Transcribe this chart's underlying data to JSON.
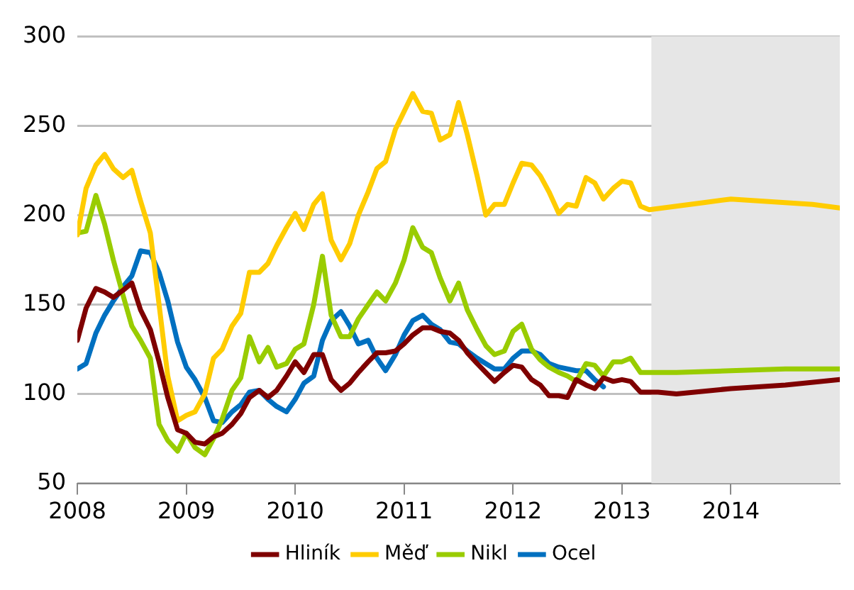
{
  "chart_data": {
    "type": "line",
    "xlim": [
      2008,
      2015
    ],
    "xticks": [
      2008,
      2009,
      2010,
      2011,
      2012,
      2013,
      2014
    ],
    "ylim": [
      50,
      300
    ],
    "yticks": [
      50,
      100,
      150,
      200,
      250,
      300
    ],
    "grid": "y",
    "legend": "bottom",
    "marker": "none",
    "line_style": "solid",
    "bands": [
      {
        "axis": "x",
        "from": 2013.27,
        "to": 2015,
        "color": "#e6e6e6"
      }
    ],
    "series": [
      {
        "name": "Hliník",
        "color": "#7f0000",
        "x": [
          2008.0,
          2008.08,
          2008.17,
          2008.25,
          2008.33,
          2008.42,
          2008.5,
          2008.58,
          2008.67,
          2008.75,
          2008.83,
          2008.92,
          2009.0,
          2009.08,
          2009.17,
          2009.25,
          2009.33,
          2009.42,
          2009.5,
          2009.58,
          2009.67,
          2009.75,
          2009.83,
          2009.92,
          2010.0,
          2010.08,
          2010.17,
          2010.25,
          2010.33,
          2010.42,
          2010.5,
          2010.58,
          2010.67,
          2010.75,
          2010.83,
          2010.92,
          2011.0,
          2011.08,
          2011.17,
          2011.25,
          2011.33,
          2011.42,
          2011.5,
          2011.58,
          2011.67,
          2011.75,
          2011.83,
          2011.92,
          2012.0,
          2012.08,
          2012.17,
          2012.25,
          2012.33,
          2012.42,
          2012.5,
          2012.58,
          2012.67,
          2012.75,
          2012.83,
          2012.92,
          2013.0,
          2013.08,
          2013.17,
          2013.33,
          2013.5,
          2014.0,
          2014.5,
          2015.0
        ],
        "values": [
          130,
          148,
          159,
          157,
          154,
          158,
          162,
          147,
          136,
          118,
          98,
          80,
          78,
          73,
          72,
          76,
          78,
          83,
          89,
          98,
          102,
          98,
          102,
          110,
          118,
          112,
          122,
          122,
          108,
          102,
          106,
          112,
          118,
          123,
          123,
          124,
          128,
          133,
          137,
          137,
          135,
          134,
          130,
          123,
          117,
          112,
          107,
          112,
          116,
          115,
          108,
          105,
          99,
          99,
          98,
          108,
          105,
          103,
          109,
          107,
          108,
          107,
          101,
          101,
          100,
          103,
          105,
          108
        ]
      },
      {
        "name": "Měď",
        "color": "#ffcc00",
        "x": [
          2008.0,
          2008.08,
          2008.17,
          2008.25,
          2008.33,
          2008.42,
          2008.5,
          2008.58,
          2008.67,
          2008.75,
          2008.83,
          2008.92,
          2009.0,
          2009.08,
          2009.17,
          2009.25,
          2009.33,
          2009.42,
          2009.5,
          2009.58,
          2009.67,
          2009.75,
          2009.83,
          2009.92,
          2010.0,
          2010.08,
          2010.17,
          2010.25,
          2010.33,
          2010.42,
          2010.5,
          2010.58,
          2010.67,
          2010.75,
          2010.83,
          2010.92,
          2011.0,
          2011.08,
          2011.17,
          2011.25,
          2011.33,
          2011.42,
          2011.5,
          2011.58,
          2011.67,
          2011.75,
          2011.83,
          2011.92,
          2012.0,
          2012.08,
          2012.17,
          2012.25,
          2012.33,
          2012.42,
          2012.5,
          2012.58,
          2012.67,
          2012.75,
          2012.83,
          2012.92,
          2013.0,
          2013.08,
          2013.17,
          2013.25,
          2013.5,
          2013.75,
          2014.0,
          2014.25,
          2014.5,
          2014.75,
          2015.0
        ],
        "values": [
          189,
          215,
          228,
          234,
          226,
          221,
          225,
          208,
          190,
          150,
          110,
          85,
          88,
          90,
          100,
          120,
          125,
          138,
          145,
          168,
          168,
          173,
          183,
          193,
          201,
          192,
          206,
          212,
          186,
          175,
          184,
          200,
          213,
          226,
          230,
          248,
          258,
          268,
          258,
          257,
          242,
          245,
          263,
          245,
          222,
          200,
          206,
          206,
          218,
          229,
          228,
          222,
          213,
          201,
          206,
          205,
          221,
          218,
          209,
          215,
          219,
          218,
          205,
          203,
          205,
          207,
          209,
          208,
          207,
          206,
          204
        ]
      },
      {
        "name": "Nikl",
        "color": "#99cc00",
        "x": [
          2008.0,
          2008.08,
          2008.17,
          2008.25,
          2008.33,
          2008.42,
          2008.5,
          2008.58,
          2008.67,
          2008.75,
          2008.83,
          2008.92,
          2009.0,
          2009.08,
          2009.17,
          2009.25,
          2009.33,
          2009.42,
          2009.5,
          2009.58,
          2009.67,
          2009.75,
          2009.83,
          2009.92,
          2010.0,
          2010.08,
          2010.17,
          2010.25,
          2010.33,
          2010.42,
          2010.5,
          2010.58,
          2010.67,
          2010.75,
          2010.83,
          2010.92,
          2011.0,
          2011.08,
          2011.17,
          2011.25,
          2011.33,
          2011.42,
          2011.5,
          2011.58,
          2011.67,
          2011.75,
          2011.83,
          2011.92,
          2012.0,
          2012.08,
          2012.17,
          2012.25,
          2012.33,
          2012.42,
          2012.5,
          2012.58,
          2012.67,
          2012.75,
          2012.83,
          2012.92,
          2013.0,
          2013.08,
          2013.17,
          2013.5,
          2014.0,
          2014.5,
          2015.0
        ],
        "values": [
          190,
          191,
          211,
          195,
          175,
          155,
          138,
          130,
          120,
          83,
          74,
          68,
          78,
          70,
          66,
          75,
          86,
          102,
          109,
          132,
          118,
          126,
          115,
          117,
          125,
          128,
          150,
          177,
          144,
          132,
          132,
          142,
          150,
          157,
          152,
          162,
          175,
          193,
          182,
          179,
          165,
          152,
          162,
          147,
          136,
          127,
          122,
          124,
          135,
          139,
          125,
          119,
          115,
          112,
          110,
          107,
          117,
          116,
          110,
          118,
          118,
          120,
          112,
          112,
          113,
          114,
          114
        ]
      },
      {
        "name": "Ocel",
        "color": "#0070c0",
        "x": [
          2008.0,
          2008.08,
          2008.17,
          2008.25,
          2008.33,
          2008.42,
          2008.5,
          2008.58,
          2008.67,
          2008.75,
          2008.83,
          2008.92,
          2009.0,
          2009.08,
          2009.17,
          2009.25,
          2009.33,
          2009.42,
          2009.5,
          2009.58,
          2009.67,
          2009.75,
          2009.83,
          2009.92,
          2010.0,
          2010.08,
          2010.17,
          2010.25,
          2010.33,
          2010.42,
          2010.5,
          2010.58,
          2010.67,
          2010.75,
          2010.83,
          2010.92,
          2011.0,
          2011.08,
          2011.17,
          2011.25,
          2011.33,
          2011.42,
          2011.5,
          2011.58,
          2011.67,
          2011.75,
          2011.83,
          2011.92,
          2012.0,
          2012.08,
          2012.17,
          2012.25,
          2012.33,
          2012.42,
          2012.5,
          2012.58,
          2012.67,
          2012.75,
          2012.83
        ],
        "values": [
          114,
          117,
          134,
          144,
          152,
          160,
          166,
          180,
          179,
          168,
          152,
          129,
          115,
          108,
          98,
          85,
          84,
          90,
          94,
          101,
          102,
          97,
          93,
          90,
          97,
          106,
          110,
          130,
          141,
          146,
          138,
          128,
          130,
          120,
          113,
          122,
          133,
          141,
          144,
          139,
          136,
          129,
          128,
          124,
          120,
          117,
          114,
          114,
          120,
          124,
          124,
          122,
          117,
          115,
          114,
          113,
          113,
          108,
          104
        ]
      }
    ]
  }
}
